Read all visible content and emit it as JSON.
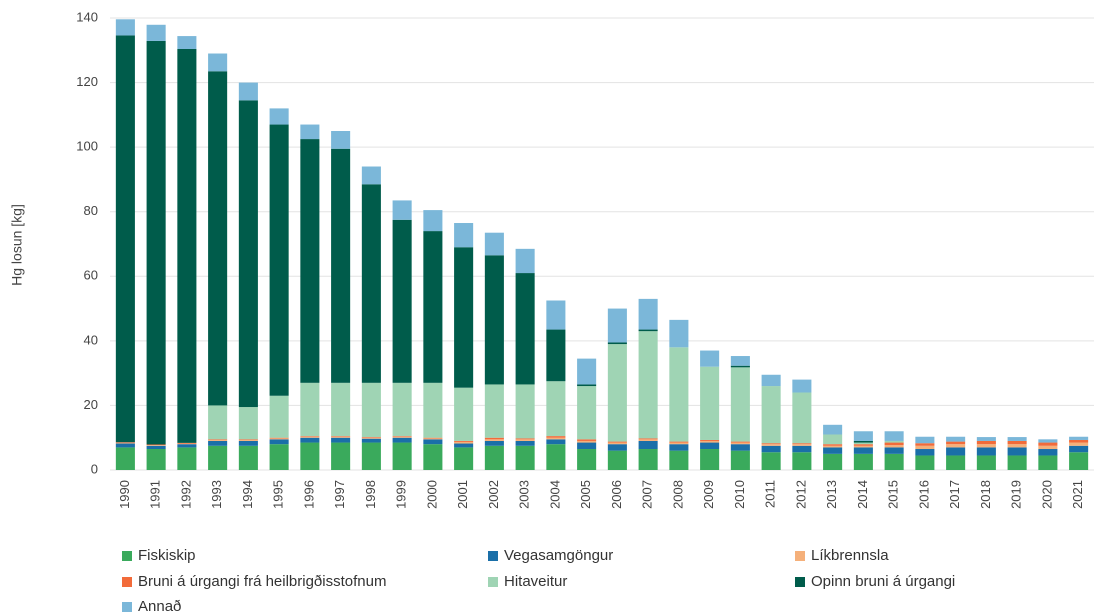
{
  "chart_data": {
    "type": "stacked_bar",
    "y_label": "Hg losun [kg]",
    "categories": [
      "1990",
      "1991",
      "1992",
      "1993",
      "1994",
      "1995",
      "1996",
      "1997",
      "1998",
      "1999",
      "2000",
      "2001",
      "2002",
      "2003",
      "2004",
      "2005",
      "2006",
      "2007",
      "2008",
      "2009",
      "2010",
      "2011",
      "2012",
      "2013",
      "2014",
      "2015",
      "2016",
      "2017",
      "2018",
      "2019",
      "2020",
      "2021"
    ],
    "series": [
      {
        "name": "Fiskiskip",
        "color": "#3aaa5c",
        "values": [
          7,
          6.5,
          7,
          7.5,
          7.5,
          8,
          8.5,
          8.5,
          8.5,
          8.5,
          8,
          7,
          7.5,
          7.5,
          8,
          6.5,
          6,
          6.5,
          6,
          6.5,
          6,
          5.5,
          5.5,
          5,
          5,
          5,
          4.5,
          4.5,
          4.5,
          4.5,
          4.5,
          5.5
        ]
      },
      {
        "name": "Vegasamgöngur",
        "color": "#1a6fa8",
        "values": [
          1.2,
          1,
          1,
          1.5,
          1.5,
          1.5,
          1.5,
          1.5,
          1.2,
          1.5,
          1.5,
          1.2,
          1.5,
          1.5,
          1.5,
          2,
          2,
          2.5,
          2,
          2,
          2,
          2,
          2,
          2,
          2,
          2,
          2,
          2.5,
          2.5,
          2.5,
          2,
          2
        ]
      },
      {
        "name": "Líkbrennsla",
        "color": "#f5b07a",
        "values": [
          0.2,
          0.2,
          0.2,
          0.3,
          0.3,
          0.3,
          0.3,
          0.3,
          0.3,
          0.3,
          0.3,
          0.5,
          0.5,
          0.5,
          0.5,
          0.5,
          0.5,
          0.5,
          0.5,
          0.5,
          0.5,
          0.5,
          0.5,
          0.5,
          0.5,
          0.7,
          1,
          1,
          1,
          1,
          1,
          1
        ]
      },
      {
        "name": "Bruni á úrgangi frá heilbrigðisstofnum",
        "color": "#f26b3a",
        "values": [
          0.2,
          0.2,
          0.2,
          0.2,
          0.2,
          0.2,
          0.2,
          0.2,
          0.2,
          0.2,
          0.2,
          0.3,
          0.5,
          0.3,
          0.5,
          0.5,
          0.3,
          0.3,
          0.3,
          0.3,
          0.3,
          0.3,
          0.3,
          0.5,
          0.5,
          0.8,
          0.8,
          0.8,
          1,
          1,
          1,
          0.8
        ]
      },
      {
        "name": "Hitaveitur",
        "color": "#9fd4b4",
        "values": [
          0,
          0,
          0,
          10.5,
          10,
          13,
          16.5,
          16.5,
          16.8,
          16.5,
          17,
          16.5,
          16.5,
          16.7,
          17,
          16.5,
          30.2,
          33.2,
          29.2,
          22.7,
          23,
          17.7,
          15.7,
          3,
          0.5,
          0.5,
          0,
          0,
          0,
          0,
          0,
          0
        ]
      },
      {
        "name": "Opinn bruni á úrgangi",
        "color": "#005c4b",
        "values": [
          126,
          125,
          122,
          103.5,
          95,
          84,
          75.5,
          72.5,
          61.5,
          50.5,
          47,
          43.5,
          40,
          34.5,
          16,
          0.5,
          0.5,
          0.5,
          0,
          0,
          0.5,
          0,
          0,
          0,
          0.5,
          0,
          0,
          0,
          0,
          0,
          0,
          0
        ]
      },
      {
        "name": "Annað",
        "color": "#7bb7d9",
        "values": [
          5,
          5,
          4,
          5.5,
          5.5,
          5,
          4.5,
          5.5,
          5.5,
          6,
          6.5,
          7.5,
          7,
          7.5,
          9,
          8,
          10.5,
          9.5,
          8.5,
          5,
          3,
          3.5,
          4,
          3,
          3,
          3,
          2,
          1.5,
          1.2,
          1.2,
          1,
          1
        ]
      }
    ],
    "ylim": [
      0,
      140
    ],
    "yticks": [
      0,
      20,
      40,
      60,
      80,
      100,
      120,
      140
    ],
    "grid": true,
    "legend": "bottom"
  }
}
